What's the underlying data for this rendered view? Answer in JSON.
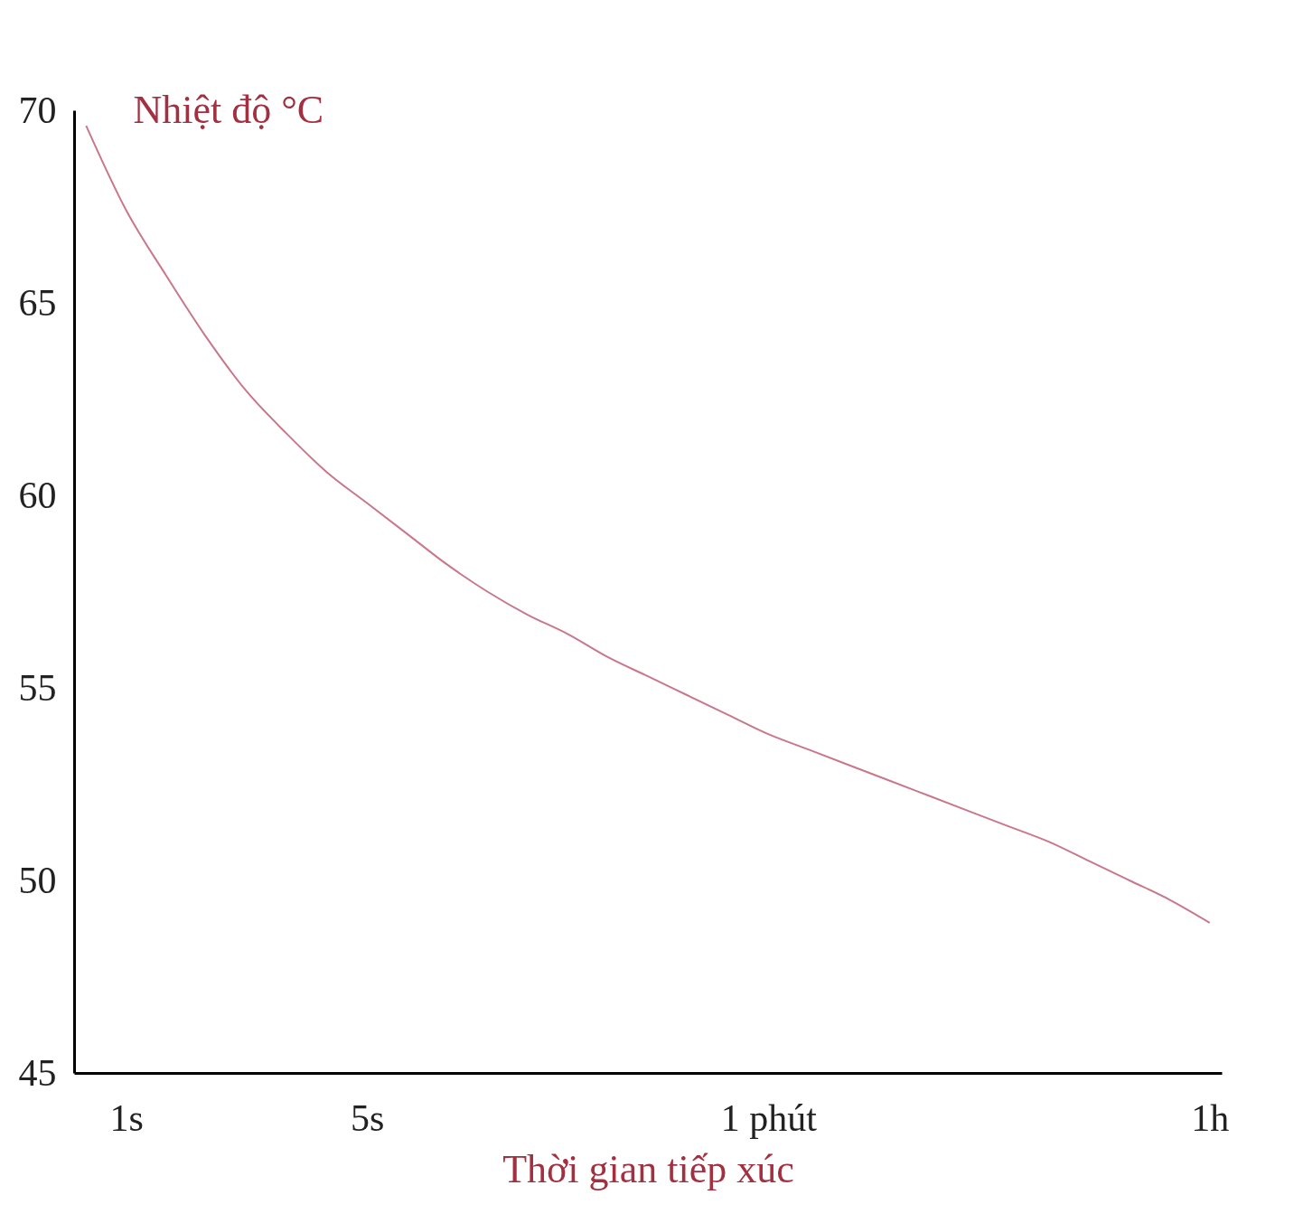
{
  "chart_data": {
    "type": "line",
    "xlabel": "Thời gian tiếp xúc",
    "ylabel": "Nhiệt độ °C",
    "categories": [
      null,
      "1s",
      null,
      null,
      null,
      null,
      null,
      "5s",
      null,
      null,
      null,
      null,
      null,
      null,
      null,
      null,
      null,
      "1 phút",
      null,
      null,
      null,
      null,
      null,
      null,
      null,
      null,
      null,
      null,
      "1h"
    ],
    "series": [
      {
        "color": "#c8788a",
        "values": [
          69.6,
          67.4,
          65.7,
          64.1,
          62.7,
          61.6,
          60.6,
          59.8,
          59.0,
          58.2,
          57.5,
          56.9,
          56.4,
          55.8,
          55.3,
          54.8,
          54.3,
          53.8,
          53.4,
          53.0,
          52.6,
          52.2,
          51.8,
          51.4,
          51.0,
          50.5,
          50.0,
          49.5,
          48.9
        ]
      }
    ],
    "ylim": [
      45,
      70
    ],
    "yticks": [
      45,
      50,
      55,
      60,
      65,
      70
    ],
    "marker": "none",
    "line_style": "solid"
  }
}
